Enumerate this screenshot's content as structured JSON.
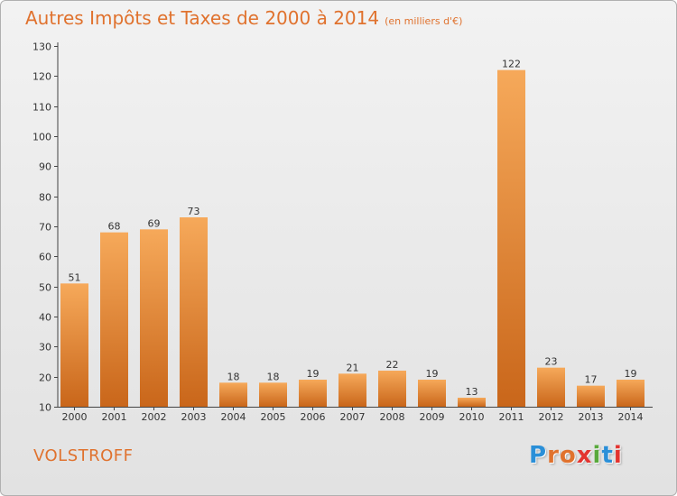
{
  "header": {
    "title": "Autres Impôts et Taxes de 2000 à 2014",
    "unit": "(en milliers d'€)"
  },
  "footer": {
    "commune": "VOLSTROFF",
    "logo_text": "Proxiti",
    "logo_colors": [
      "#2a8fd8",
      "#e0722e",
      "#e0722e",
      "#e3342f",
      "#59a93c",
      "#2a8fd8",
      "#e3342f"
    ]
  },
  "colors": {
    "accent": "#e0722e",
    "bar_top": "#f6a95a",
    "bar_bottom": "#c9661a",
    "axis": "#444444"
  },
  "chart_data": {
    "type": "bar",
    "title": "Autres Impôts et Taxes de 2000 à 2014",
    "subtitle": "(en milliers d'€)",
    "xlabel": "",
    "ylabel": "",
    "categories": [
      "2000",
      "2001",
      "2002",
      "2003",
      "2004",
      "2005",
      "2006",
      "2007",
      "2008",
      "2009",
      "2010",
      "2011",
      "2012",
      "2013",
      "2014"
    ],
    "values": [
      51,
      68,
      69,
      73,
      18,
      18,
      19,
      21,
      22,
      19,
      13,
      122,
      23,
      17,
      19
    ],
    "ylim": [
      10,
      130
    ],
    "yticks": [
      10,
      20,
      30,
      40,
      50,
      60,
      70,
      80,
      90,
      100,
      110,
      120,
      130
    ],
    "data_labels": true,
    "grid": false,
    "legend": "none"
  }
}
